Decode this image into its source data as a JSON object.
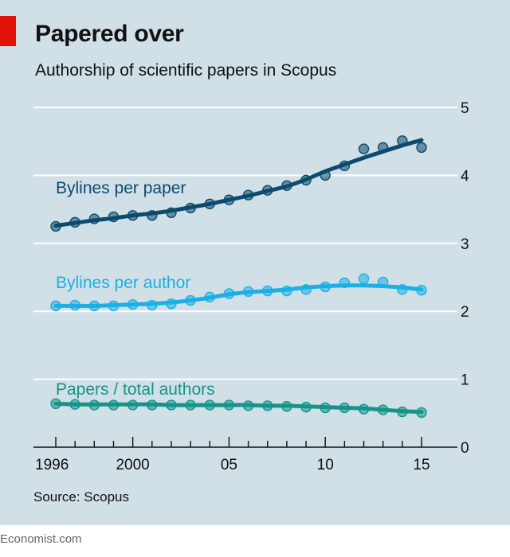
{
  "header": {
    "title": "Papered over",
    "subtitle": "Authorship of scientific papers in Scopus"
  },
  "source": "Source: Scopus",
  "footer": "Economist.com",
  "colors": {
    "background": "#d1dfe7",
    "accent_red": "#e3120b",
    "bylines_per_paper": "#0c4a6e",
    "bylines_per_author": "#1bb0e3",
    "papers_per_author": "#14948a"
  },
  "chart_data": {
    "type": "line",
    "title": "Papered over",
    "subtitle": "Authorship of scientific papers in Scopus",
    "x": [
      1996,
      1997,
      1998,
      1999,
      2000,
      2001,
      2002,
      2003,
      2004,
      2005,
      2006,
      2007,
      2008,
      2009,
      2010,
      2011,
      2012,
      2013,
      2014,
      2015
    ],
    "x_tick_values": [
      1996,
      1997,
      1998,
      1999,
      2000,
      2001,
      2002,
      2003,
      2004,
      2005,
      2006,
      2007,
      2008,
      2009,
      2010,
      2011,
      2012,
      2013,
      2014,
      2015
    ],
    "x_tick_labels": [
      {
        "value": 1996,
        "label": "1996"
      },
      {
        "value": 2000,
        "label": "2000"
      },
      {
        "value": 2005,
        "label": "05"
      },
      {
        "value": 2010,
        "label": "10"
      },
      {
        "value": 2015,
        "label": "15"
      }
    ],
    "y_ticks": [
      {
        "value": 0,
        "label": "0"
      },
      {
        "value": 1,
        "label": "1"
      },
      {
        "value": 2,
        "label": "2"
      },
      {
        "value": 3,
        "label": "3"
      },
      {
        "value": 4,
        "label": "4"
      },
      {
        "value": 5,
        "label": "5"
      }
    ],
    "xlim": [
      1996,
      2015
    ],
    "ylim": [
      0,
      5
    ],
    "y_axis_side": "right",
    "grid": true,
    "series": [
      {
        "name": "Bylines per paper",
        "color": "#0c4a6e",
        "values": [
          3.25,
          3.31,
          3.36,
          3.39,
          3.41,
          3.41,
          3.45,
          3.52,
          3.58,
          3.64,
          3.71,
          3.78,
          3.85,
          3.93,
          4.0,
          4.14,
          4.39,
          4.41,
          4.51,
          4.41
        ],
        "trend": [
          3.26,
          3.3,
          3.34,
          3.37,
          3.41,
          3.44,
          3.48,
          3.53,
          3.58,
          3.64,
          3.7,
          3.77,
          3.84,
          3.94,
          4.06,
          4.16,
          4.26,
          4.35,
          4.44,
          4.52
        ]
      },
      {
        "name": "Bylines per author",
        "color": "#1bb0e3",
        "values": [
          2.08,
          2.09,
          2.08,
          2.08,
          2.1,
          2.09,
          2.11,
          2.16,
          2.21,
          2.26,
          2.29,
          2.3,
          2.3,
          2.32,
          2.36,
          2.42,
          2.48,
          2.43,
          2.32,
          2.31
        ],
        "trend": [
          2.08,
          2.08,
          2.08,
          2.09,
          2.1,
          2.11,
          2.13,
          2.16,
          2.2,
          2.25,
          2.28,
          2.3,
          2.32,
          2.35,
          2.37,
          2.38,
          2.38,
          2.37,
          2.35,
          2.32
        ]
      },
      {
        "name": "Papers / total authors",
        "color": "#14948a",
        "values": [
          0.64,
          0.63,
          0.62,
          0.62,
          0.62,
          0.62,
          0.62,
          0.62,
          0.62,
          0.62,
          0.61,
          0.61,
          0.6,
          0.59,
          0.58,
          0.58,
          0.56,
          0.55,
          0.52,
          0.51
        ],
        "trend": [
          0.64,
          0.63,
          0.63,
          0.63,
          0.63,
          0.63,
          0.62,
          0.62,
          0.62,
          0.62,
          0.62,
          0.61,
          0.61,
          0.6,
          0.59,
          0.58,
          0.57,
          0.55,
          0.53,
          0.52
        ]
      }
    ]
  }
}
